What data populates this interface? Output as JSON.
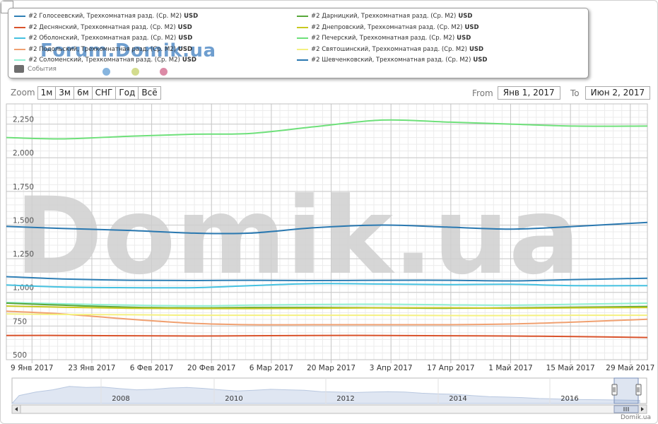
{
  "legend": {
    "items": [
      {
        "label": "#2 Голосеевский, Трехкомнатная разд. (Ср. М2)",
        "unit": "USD",
        "color": "#2f7fb5"
      },
      {
        "label": "#2 Деснянский, Трехкомнатная разд. (Ср. М2)",
        "unit": "USD",
        "color": "#d9532c"
      },
      {
        "label": "#2 Оболонский, Трехкомнатная разд. (Ср. М2)",
        "unit": "USD",
        "color": "#45c1e0"
      },
      {
        "label": "#2 Подольский, Трехкомнатная разд. (Ср. М2)",
        "unit": "USD",
        "color": "#f0a070"
      },
      {
        "label": "#2 Соломенский, Трехкомнатная разд. (Ср. М2)",
        "unit": "USD",
        "color": "#90efd2"
      },
      {
        "label": "#2 Дарницкий, Трехкомнатная разд. (Ср. М2)",
        "unit": "USD",
        "color": "#58a83a"
      },
      {
        "label": "#2 Днепровский, Трехкомнатная разд. (Ср. М2)",
        "unit": "USD",
        "color": "#c8c820"
      },
      {
        "label": "#2 Печерский, Трехкомнатная разд. (Ср. М2)",
        "unit": "USD",
        "color": "#6ee07a"
      },
      {
        "label": "#2 Святошинский, Трехкомнатная разд. (Ср. М2)",
        "unit": "USD",
        "color": "#f4f080"
      },
      {
        "label": "#2 Шевченковский, Трехкомнатная разд. (Ср. М2)",
        "unit": "USD",
        "color": "#2a78b0"
      }
    ],
    "events_label": "События"
  },
  "watermark": {
    "small": "Forum.Domik.ua",
    "big": "Domik.ua",
    "dot_colors": [
      "#86b4de",
      "#d3dc8e",
      "#dc8aa6"
    ]
  },
  "toolbar": {
    "zoom_label": "Zoom",
    "buttons": [
      "1м",
      "3м",
      "6м",
      "СНГ",
      "Год",
      "Всё"
    ],
    "from_label": "From",
    "from_value": "Янв 1, 2017",
    "to_label": "To",
    "to_value": "Июн 2, 2017"
  },
  "credit": "Domik.ua",
  "chart_data": {
    "type": "line",
    "ylim": [
      500,
      2400
    ],
    "y_ticks": [
      500,
      750,
      1000,
      1250,
      1500,
      1750,
      2000,
      2250
    ],
    "y_tick_labels": [
      "500",
      "750",
      "1,000",
      "1,250",
      "1,500",
      "1,750",
      "2,000",
      "2,250"
    ],
    "x_range": [
      "2017-01-03",
      "2017-06-02"
    ],
    "x_tick_dates": [
      "2017-01-09",
      "2017-01-23",
      "2017-02-06",
      "2017-02-20",
      "2017-03-06",
      "2017-03-20",
      "2017-04-03",
      "2017-04-17",
      "2017-05-01",
      "2017-05-15",
      "2017-05-29"
    ],
    "x_tick_labels": [
      "9 Янв 2017",
      "23 Янв 2017",
      "6 Фев 2017",
      "20 Фев 2017",
      "6 Мар 2017",
      "20 Мар 2017",
      "3 Апр 2017",
      "17 Апр 2017",
      "1 Май 2017",
      "15 Май 2017",
      "29 Май 2017"
    ],
    "x": [
      "2017-01-03",
      "2017-01-16",
      "2017-02-01",
      "2017-02-16",
      "2017-03-01",
      "2017-03-16",
      "2017-04-01",
      "2017-04-16",
      "2017-05-01",
      "2017-05-16",
      "2017-06-02"
    ],
    "series": [
      {
        "name": "#2 Голосеевский, Трехкомнатная разд. (Ср. М2)",
        "color": "#2f7fb5",
        "values": [
          1117,
          1100,
          1090,
          1088,
          1090,
          1088,
          1090,
          1090,
          1085,
          1095,
          1105
        ]
      },
      {
        "name": "#2 Деснянский, Трехкомнатная разд. (Ср. М2)",
        "color": "#d9532c",
        "values": [
          680,
          680,
          678,
          676,
          678,
          680,
          680,
          678,
          676,
          672,
          665
        ]
      },
      {
        "name": "#2 Оболонский, Трехкомнатная разд. (Ср. М2)",
        "color": "#45c1e0",
        "values": [
          1055,
          1040,
          1035,
          1035,
          1050,
          1065,
          1062,
          1058,
          1060,
          1050,
          1050
        ]
      },
      {
        "name": "#2 Подольский, Трехкомнатная разд. (Ср. М2)",
        "color": "#f0a070",
        "values": [
          860,
          840,
          800,
          770,
          760,
          760,
          760,
          760,
          765,
          780,
          800
        ]
      },
      {
        "name": "#2 Соломенский, Трехкомнатная разд. (Ср. М2)",
        "color": "#90efd2",
        "values": [
          925,
          915,
          905,
          900,
          905,
          910,
          912,
          908,
          905,
          912,
          920
        ]
      },
      {
        "name": "#2 Дарницкий, Трехкомнатная разд. (Ср. М2)",
        "color": "#58a83a",
        "values": [
          920,
          905,
          890,
          885,
          888,
          888,
          885,
          882,
          885,
          890,
          895
        ]
      },
      {
        "name": "#2 Днепровский, Трехкомнатная разд. (Ср. М2)",
        "color": "#c8c820",
        "values": [
          898,
          890,
          882,
          880,
          880,
          882,
          885,
          885,
          882,
          885,
          888
        ]
      },
      {
        "name": "#2 Печерский, Трехкомнатная разд. (Ср. М2)",
        "color": "#6ee07a",
        "values": [
          2150,
          2140,
          2160,
          2175,
          2180,
          2230,
          2280,
          2265,
          2250,
          2235,
          2235
        ]
      },
      {
        "name": "#2 Святошинский, Трехкомнатная разд. (Ср. М2)",
        "color": "#f4f080",
        "values": [
          840,
          836,
          834,
          830,
          830,
          830,
          830,
          828,
          828,
          830,
          830
        ]
      },
      {
        "name": "#2 Шевченковский, Трехкомнатная разд. (Ср. М2)",
        "color": "#2a78b0",
        "values": [
          1490,
          1475,
          1460,
          1440,
          1440,
          1480,
          1500,
          1485,
          1470,
          1490,
          1520
        ]
      }
    ],
    "navigator": {
      "year_labels": [
        "2008",
        "2010",
        "2012",
        "2014",
        "2016"
      ],
      "values": [
        0.35,
        0.5,
        0.6,
        0.75,
        0.7,
        0.72,
        0.65,
        0.6,
        0.62,
        0.68,
        0.7,
        0.66,
        0.6,
        0.55,
        0.58,
        0.62,
        0.6,
        0.58,
        0.52,
        0.5,
        0.48,
        0.5,
        0.52,
        0.5,
        0.45,
        0.42,
        0.4,
        0.35,
        0.3,
        0.28,
        0.26,
        0.22,
        0.2,
        0.18,
        0.17,
        0.16,
        0.15,
        0.14
      ]
    }
  }
}
